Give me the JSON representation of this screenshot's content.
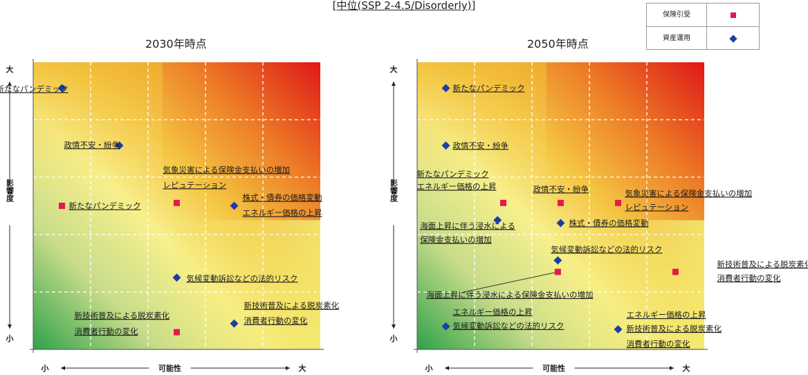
{
  "header": {
    "title": "[中位(SSP 2-4.5/Disorderly)]"
  },
  "legend": [
    {
      "label": "保険引受",
      "marker": "square",
      "color": "#e5194c"
    },
    {
      "label": "資産運用",
      "marker": "diamond",
      "color": "#1a3fa6"
    }
  ],
  "chart_data": [
    {
      "type": "scatter",
      "title": "2030年時点",
      "xlabel": "可能性",
      "ylabel": "影響度",
      "x_ticks": [
        "小",
        "大"
      ],
      "y_ticks": [
        "大",
        "小"
      ],
      "xlim": [
        0,
        5
      ],
      "ylim": [
        0,
        5
      ],
      "grid": true,
      "series": [
        {
          "name": "保険引受",
          "points": [
            {
              "x": 0.5,
              "y": 2.5,
              "labels": [
                "新たなパンデミック"
              ]
            },
            {
              "x": 2.5,
              "y": 2.55,
              "labels": [
                "気象災害による保険金支払いの増加",
                "レピュテーション"
              ]
            },
            {
              "x": 2.5,
              "y": 0.3,
              "labels": [
                "新技術普及による脱炭素化",
                "消費者行動の変化"
              ]
            }
          ]
        },
        {
          "name": "資産運用",
          "points": [
            {
              "x": 0.5,
              "y": 4.55,
              "labels": [
                "新たなパンデミック"
              ]
            },
            {
              "x": 1.5,
              "y": 3.55,
              "labels": [
                "政情不安・紛争"
              ]
            },
            {
              "x": 3.5,
              "y": 2.5,
              "labels": [
                "株式・債券の価格変動",
                "エネルギー価格の上昇"
              ]
            },
            {
              "x": 2.5,
              "y": 1.25,
              "labels": [
                "気候変動訴訟などの法的リスク"
              ]
            },
            {
              "x": 3.5,
              "y": 0.45,
              "labels": [
                "新技術普及による脱炭素化",
                "消費者行動の変化"
              ]
            }
          ]
        }
      ]
    },
    {
      "type": "scatter",
      "title": "2050年時点",
      "xlabel": "可能性",
      "ylabel": "影響度",
      "x_ticks": [
        "小",
        "大"
      ],
      "y_ticks": [
        "大",
        "小"
      ],
      "xlim": [
        0,
        5
      ],
      "ylim": [
        0,
        5
      ],
      "grid": true,
      "series": [
        {
          "name": "保険引受",
          "points": [
            {
              "x": 1.5,
              "y": 2.55,
              "labels": [
                "新たなパンデミック",
                "エネルギー価格の上昇"
              ]
            },
            {
              "x": 2.5,
              "y": 2.55,
              "labels": [
                "政情不安・紛争"
              ]
            },
            {
              "x": 3.5,
              "y": 2.55,
              "labels": [
                "気象災害による保険金支払いの増加",
                "レピュテーション"
              ]
            },
            {
              "x": 4.5,
              "y": 1.35,
              "labels": [
                "新技術普及による脱炭素化",
                "消費者行動の変化"
              ]
            },
            {
              "x": 2.45,
              "y": 1.35,
              "labels": [
                "海面上昇に伴う浸水による保険金支払いの増加"
              ]
            }
          ]
        },
        {
          "name": "資産運用",
          "points": [
            {
              "x": 0.5,
              "y": 4.55,
              "labels": [
                "新たなパンデミック"
              ]
            },
            {
              "x": 0.5,
              "y": 3.55,
              "labels": [
                "政情不安・紛争"
              ]
            },
            {
              "x": 1.4,
              "y": 2.25,
              "labels": [
                "海面上昇に伴う浸水による",
                "保険金支払いの増加"
              ]
            },
            {
              "x": 2.5,
              "y": 2.2,
              "labels": [
                "株式・債券の価格変動"
              ]
            },
            {
              "x": 2.45,
              "y": 1.55,
              "labels": [
                "気候変動訴訟などの法的リスク"
              ]
            },
            {
              "x": 3.5,
              "y": 0.35,
              "labels": [
                "エネルギー価格の上昇",
                "新技術普及による脱炭素化",
                "消費者行動の変化"
              ]
            },
            {
              "x": 0.5,
              "y": 0.4,
              "labels": [
                "エネルギー価格の上昇",
                "気候変動訴訟などの法的リスク"
              ]
            }
          ]
        }
      ]
    }
  ]
}
